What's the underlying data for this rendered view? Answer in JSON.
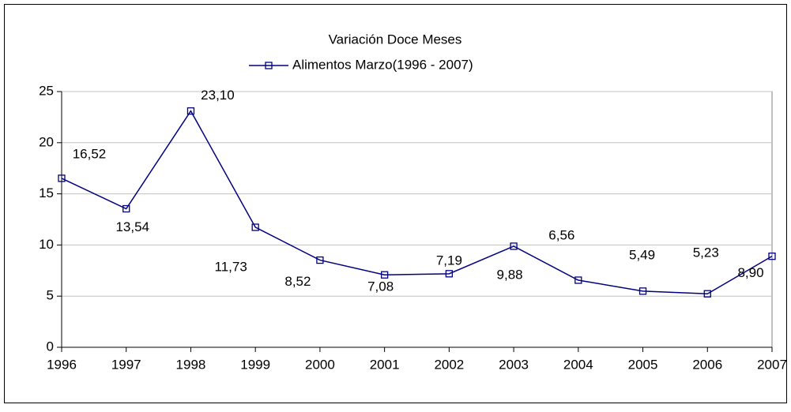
{
  "chart_data": {
    "type": "line",
    "title": "Variación Doce Meses",
    "categories": [
      "1996",
      "1997",
      "1998",
      "1999",
      "2000",
      "2001",
      "2002",
      "2003",
      "2004",
      "2005",
      "2006",
      "2007"
    ],
    "series": [
      {
        "name": "Alimentos Marzo(1996 - 2007)",
        "color": "#000080",
        "values": [
          16.52,
          13.54,
          23.1,
          11.73,
          8.52,
          7.08,
          7.19,
          9.88,
          6.56,
          5.49,
          5.23,
          8.9
        ],
        "value_labels": [
          "16,52",
          "13,54",
          "23,10",
          "11,73",
          "8,52",
          "7,08",
          "7,19",
          "9,88",
          "6,56",
          "5,49",
          "5,23",
          "8,90"
        ]
      }
    ],
    "ylim": [
      0,
      25
    ],
    "yticks": [
      0,
      5,
      10,
      15,
      20,
      25
    ],
    "grid": true,
    "legend": "top"
  }
}
